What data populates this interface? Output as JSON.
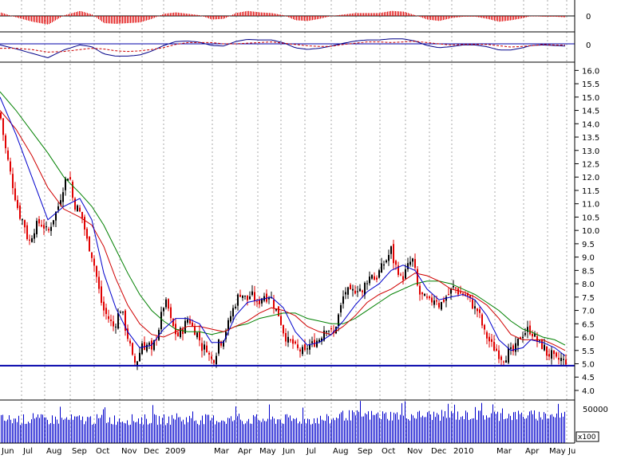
{
  "chart_data": {
    "type": "candlestick",
    "colors": {
      "price": "#e00000",
      "ma_short": "#0000cc",
      "ma_medium": "#d00000",
      "ma_long": "#008000",
      "support": "#0000aa",
      "histogram": "#e00000",
      "macd": "#000088",
      "signal": "#cc0000",
      "volume": "#0000cc",
      "grid": "#aaaaaa"
    },
    "histogram_panel": {
      "zero_label": "0",
      "series": "oscillator histogram"
    },
    "macd_panel": {
      "zero_label": "0"
    },
    "price_panel": {
      "y_ticks": [
        "16.0",
        "15.5",
        "15.0",
        "14.5",
        "14.0",
        "13.5",
        "13.0",
        "12.5",
        "12.0",
        "11.5",
        "11.0",
        "10.5",
        "10.0",
        "9.5",
        "9.0",
        "8.5",
        "8.0",
        "7.5",
        "7.0",
        "6.5",
        "6.0",
        "5.5",
        "5.0",
        "4.5",
        "4.0"
      ],
      "ylim": [
        3.7,
        16.1
      ],
      "support_level": 4.93,
      "price_path": [
        [
          0,
          14.4
        ],
        [
          6,
          13.2
        ],
        [
          12,
          12.3
        ],
        [
          18,
          11.4
        ],
        [
          24,
          10.6
        ],
        [
          30,
          10.3
        ],
        [
          36,
          9.5
        ],
        [
          42,
          10.0
        ],
        [
          48,
          10.3
        ],
        [
          54,
          10.2
        ],
        [
          60,
          9.9
        ],
        [
          66,
          10.4
        ],
        [
          72,
          10.8
        ],
        [
          78,
          11.5
        ],
        [
          84,
          12.1
        ],
        [
          88,
          11.9
        ],
        [
          92,
          11.0
        ],
        [
          98,
          10.8
        ],
        [
          104,
          10.4
        ],
        [
          108,
          9.7
        ],
        [
          114,
          9.2
        ],
        [
          118,
          8.7
        ],
        [
          122,
          8.1
        ],
        [
          126,
          7.4
        ],
        [
          130,
          7.0
        ],
        [
          134,
          6.8
        ],
        [
          138,
          6.6
        ],
        [
          142,
          6.4
        ],
        [
          146,
          6.6
        ],
        [
          150,
          7.1
        ],
        [
          154,
          6.8
        ],
        [
          158,
          6.2
        ],
        [
          162,
          5.8
        ],
        [
          166,
          5.2
        ],
        [
          170,
          5.0
        ],
        [
          174,
          5.3
        ],
        [
          178,
          5.8
        ],
        [
          182,
          5.6
        ],
        [
          186,
          5.8
        ],
        [
          190,
          5.4
        ],
        [
          194,
          5.9
        ],
        [
          198,
          6.2
        ],
        [
          202,
          6.8
        ],
        [
          206,
          7.3
        ],
        [
          210,
          7.2
        ],
        [
          214,
          6.6
        ],
        [
          218,
          6.3
        ],
        [
          222,
          6.0
        ],
        [
          226,
          6.2
        ],
        [
          230,
          6.3
        ],
        [
          234,
          6.7
        ],
        [
          238,
          6.6
        ],
        [
          242,
          6.3
        ],
        [
          246,
          6.2
        ],
        [
          250,
          5.9
        ],
        [
          254,
          5.5
        ],
        [
          258,
          5.7
        ],
        [
          262,
          5.3
        ],
        [
          266,
          5.1
        ],
        [
          270,
          5.3
        ],
        [
          274,
          5.9
        ],
        [
          278,
          5.8
        ],
        [
          282,
          6.2
        ],
        [
          286,
          6.5
        ],
        [
          290,
          6.9
        ],
        [
          294,
          7.2
        ],
        [
          298,
          7.5
        ],
        [
          302,
          7.7
        ],
        [
          306,
          7.5
        ],
        [
          310,
          7.4
        ],
        [
          314,
          7.6
        ],
        [
          318,
          7.5
        ],
        [
          322,
          7.2
        ],
        [
          326,
          7.4
        ],
        [
          330,
          7.6
        ],
        [
          334,
          7.5
        ],
        [
          338,
          7.6
        ],
        [
          342,
          7.3
        ],
        [
          346,
          7.0
        ],
        [
          350,
          6.8
        ],
        [
          354,
          6.3
        ],
        [
          358,
          6.0
        ],
        [
          362,
          5.8
        ],
        [
          366,
          5.8
        ],
        [
          370,
          5.6
        ],
        [
          374,
          5.5
        ],
        [
          378,
          5.5
        ],
        [
          382,
          5.4
        ],
        [
          386,
          5.7
        ],
        [
          390,
          5.7
        ],
        [
          394,
          5.8
        ],
        [
          398,
          5.9
        ],
        [
          402,
          6.0
        ],
        [
          406,
          6.3
        ],
        [
          410,
          6.4
        ],
        [
          414,
          6.2
        ],
        [
          418,
          6.1
        ],
        [
          422,
          6.6
        ],
        [
          426,
          7.0
        ],
        [
          430,
          7.5
        ],
        [
          434,
          7.8
        ],
        [
          438,
          7.6
        ],
        [
          442,
          7.7
        ],
        [
          446,
          7.8
        ],
        [
          450,
          7.9
        ],
        [
          454,
          7.6
        ],
        [
          458,
          8.1
        ],
        [
          462,
          8.2
        ],
        [
          466,
          8.4
        ],
        [
          470,
          8.1
        ],
        [
          474,
          8.4
        ],
        [
          478,
          8.6
        ],
        [
          482,
          8.8
        ],
        [
          486,
          9.0
        ],
        [
          490,
          9.3
        ],
        [
          494,
          8.7
        ],
        [
          498,
          8.6
        ],
        [
          502,
          8.2
        ],
        [
          506,
          8.3
        ],
        [
          510,
          8.6
        ],
        [
          514,
          8.8
        ],
        [
          518,
          8.9
        ],
        [
          522,
          8.0
        ],
        [
          526,
          7.6
        ],
        [
          530,
          7.5
        ],
        [
          534,
          7.4
        ],
        [
          538,
          7.3
        ],
        [
          542,
          7.4
        ],
        [
          546,
          7.5
        ],
        [
          550,
          7.2
        ],
        [
          554,
          7.3
        ],
        [
          558,
          7.5
        ],
        [
          562,
          7.6
        ],
        [
          566,
          7.8
        ],
        [
          570,
          7.9
        ],
        [
          574,
          7.7
        ],
        [
          578,
          7.6
        ],
        [
          582,
          7.6
        ],
        [
          586,
          7.5
        ],
        [
          590,
          7.3
        ],
        [
          594,
          7.1
        ],
        [
          598,
          7.0
        ],
        [
          602,
          6.7
        ],
        [
          606,
          6.2
        ],
        [
          610,
          6.0
        ],
        [
          614,
          5.8
        ],
        [
          618,
          5.6
        ],
        [
          622,
          5.5
        ],
        [
          626,
          5.3
        ],
        [
          630,
          5.2
        ],
        [
          634,
          5.3
        ],
        [
          638,
          5.5
        ],
        [
          642,
          5.4
        ],
        [
          646,
          5.6
        ],
        [
          650,
          5.9
        ],
        [
          654,
          6.1
        ],
        [
          658,
          6.2
        ],
        [
          662,
          6.3
        ],
        [
          666,
          6.2
        ],
        [
          670,
          6.0
        ],
        [
          674,
          5.8
        ],
        [
          678,
          5.7
        ],
        [
          682,
          5.6
        ],
        [
          686,
          5.3
        ],
        [
          690,
          5.4
        ],
        [
          694,
          5.2
        ],
        [
          698,
          5.1
        ],
        [
          702,
          5.2
        ],
        [
          706,
          5.1
        ]
      ],
      "ma_short": [
        [
          0,
          15.0
        ],
        [
          20,
          13.6
        ],
        [
          40,
          12.0
        ],
        [
          60,
          10.4
        ],
        [
          80,
          10.9
        ],
        [
          100,
          11.2
        ],
        [
          115,
          10.4
        ],
        [
          130,
          8.4
        ],
        [
          145,
          7.1
        ],
        [
          160,
          6.2
        ],
        [
          175,
          5.6
        ],
        [
          190,
          5.7
        ],
        [
          205,
          6.3
        ],
        [
          220,
          6.7
        ],
        [
          235,
          6.7
        ],
        [
          250,
          6.5
        ],
        [
          265,
          5.8
        ],
        [
          280,
          5.8
        ],
        [
          295,
          6.8
        ],
        [
          310,
          7.3
        ],
        [
          325,
          7.4
        ],
        [
          340,
          7.5
        ],
        [
          355,
          7.1
        ],
        [
          370,
          6.2
        ],
        [
          385,
          5.7
        ],
        [
          400,
          5.8
        ],
        [
          415,
          6.1
        ],
        [
          430,
          6.6
        ],
        [
          445,
          7.2
        ],
        [
          460,
          7.7
        ],
        [
          475,
          8.0
        ],
        [
          490,
          8.5
        ],
        [
          505,
          8.7
        ],
        [
          520,
          8.5
        ],
        [
          535,
          7.8
        ],
        [
          550,
          7.4
        ],
        [
          565,
          7.5
        ],
        [
          580,
          7.6
        ],
        [
          595,
          7.4
        ],
        [
          610,
          6.8
        ],
        [
          625,
          5.9
        ],
        [
          640,
          5.5
        ],
        [
          655,
          5.6
        ],
        [
          665,
          5.9
        ],
        [
          680,
          5.8
        ],
        [
          695,
          5.6
        ],
        [
          708,
          5.3
        ]
      ],
      "ma_medium": [
        [
          0,
          14.5
        ],
        [
          20,
          13.8
        ],
        [
          40,
          12.8
        ],
        [
          60,
          11.6
        ],
        [
          80,
          10.8
        ],
        [
          100,
          10.5
        ],
        [
          115,
          10.2
        ],
        [
          130,
          9.4
        ],
        [
          145,
          8.2
        ],
        [
          160,
          7.2
        ],
        [
          175,
          6.5
        ],
        [
          190,
          6.1
        ],
        [
          205,
          6.0
        ],
        [
          220,
          6.2
        ],
        [
          235,
          6.4
        ],
        [
          250,
          6.4
        ],
        [
          265,
          6.3
        ],
        [
          280,
          6.2
        ],
        [
          295,
          6.4
        ],
        [
          310,
          6.6
        ],
        [
          325,
          6.9
        ],
        [
          340,
          7.1
        ],
        [
          355,
          7.0
        ],
        [
          370,
          6.8
        ],
        [
          385,
          6.4
        ],
        [
          400,
          6.2
        ],
        [
          415,
          6.1
        ],
        [
          430,
          6.4
        ],
        [
          445,
          6.8
        ],
        [
          460,
          7.3
        ],
        [
          475,
          7.6
        ],
        [
          490,
          7.8
        ],
        [
          505,
          8.1
        ],
        [
          520,
          8.4
        ],
        [
          535,
          8.3
        ],
        [
          550,
          8.1
        ],
        [
          565,
          7.8
        ],
        [
          580,
          7.7
        ],
        [
          595,
          7.5
        ],
        [
          610,
          7.2
        ],
        [
          625,
          6.7
        ],
        [
          640,
          6.1
        ],
        [
          655,
          5.9
        ],
        [
          665,
          5.9
        ],
        [
          680,
          5.9
        ],
        [
          695,
          5.7
        ],
        [
          708,
          5.5
        ]
      ],
      "ma_long": [
        [
          0,
          15.2
        ],
        [
          20,
          14.5
        ],
        [
          40,
          13.7
        ],
        [
          60,
          12.9
        ],
        [
          80,
          12.0
        ],
        [
          100,
          11.4
        ],
        [
          115,
          10.9
        ],
        [
          130,
          10.2
        ],
        [
          145,
          9.3
        ],
        [
          160,
          8.4
        ],
        [
          175,
          7.6
        ],
        [
          190,
          7.0
        ],
        [
          205,
          6.6
        ],
        [
          220,
          6.3
        ],
        [
          235,
          6.2
        ],
        [
          250,
          6.2
        ],
        [
          265,
          6.1
        ],
        [
          280,
          6.2
        ],
        [
          295,
          6.4
        ],
        [
          310,
          6.5
        ],
        [
          325,
          6.7
        ],
        [
          340,
          6.8
        ],
        [
          355,
          6.9
        ],
        [
          370,
          6.9
        ],
        [
          385,
          6.7
        ],
        [
          400,
          6.6
        ],
        [
          415,
          6.5
        ],
        [
          430,
          6.5
        ],
        [
          445,
          6.7
        ],
        [
          460,
          7.0
        ],
        [
          475,
          7.3
        ],
        [
          490,
          7.6
        ],
        [
          505,
          7.8
        ],
        [
          520,
          8.0
        ],
        [
          535,
          8.1
        ],
        [
          550,
          8.1
        ],
        [
          565,
          8.0
        ],
        [
          580,
          7.8
        ],
        [
          595,
          7.6
        ],
        [
          610,
          7.3
        ],
        [
          625,
          7.0
        ],
        [
          640,
          6.6
        ],
        [
          655,
          6.3
        ],
        [
          665,
          6.2
        ],
        [
          680,
          6.0
        ],
        [
          695,
          5.9
        ],
        [
          708,
          5.7
        ]
      ]
    },
    "volume_panel": {
      "y_ticks": [
        "50000"
      ],
      "scale_label": "x100",
      "ylim": [
        0,
        60000
      ]
    },
    "x_axis": {
      "labels": [
        "Jun",
        "Jul",
        "Aug",
        "Sep",
        "Oct",
        "Nov",
        "Dec",
        "2009",
        "Mar",
        "Apr",
        "May",
        "Jun",
        "Jul",
        "Aug",
        "Sep",
        "Oct",
        "Nov",
        "Dec",
        "2010",
        "Mar",
        "Apr",
        "May",
        "Ju"
      ],
      "positions": [
        0,
        27,
        56,
        88,
        118,
        150,
        178,
        205,
        266,
        296,
        323,
        352,
        382,
        415,
        446,
        476,
        508,
        538,
        566,
        620,
        656,
        686,
        710
      ]
    }
  }
}
